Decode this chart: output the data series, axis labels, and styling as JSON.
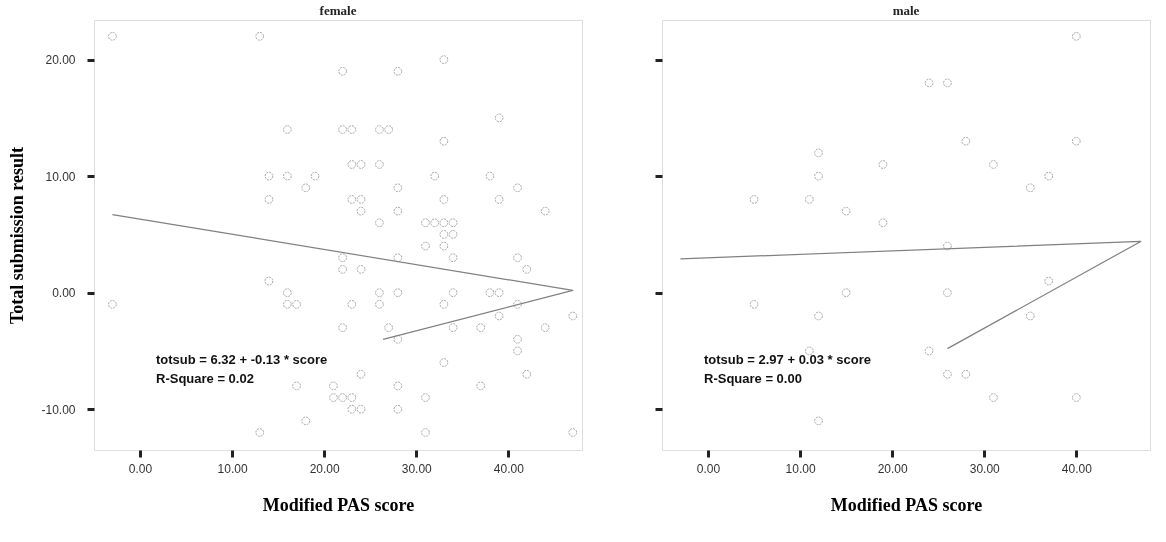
{
  "chart_data": [
    {
      "type": "scatter",
      "title": "female",
      "xlabel": "Modified PAS score",
      "ylabel": "Total submission result",
      "grid": false,
      "xlim": [
        -5,
        48
      ],
      "ylim": [
        -13.5,
        23.4
      ],
      "xticks": [
        {
          "value": 0,
          "label": "0.00"
        },
        {
          "value": 10,
          "label": "10.00"
        },
        {
          "value": 20,
          "label": "20.00"
        },
        {
          "value": 30,
          "label": "30.00"
        },
        {
          "value": 40,
          "label": "40.00"
        }
      ],
      "yticks": [
        {
          "value": -10,
          "label": "-10.00"
        },
        {
          "value": 0,
          "label": "0.00"
        },
        {
          "value": 10,
          "label": "10.00"
        },
        {
          "value": 20,
          "label": "20.00"
        }
      ],
      "annotations": [
        "totsub = 6.32 + -0.13 * score",
        "R-Square = 0.02"
      ],
      "series": [
        {
          "marker": "circle",
          "color": "#7f7f7f",
          "x": [
            -3,
            13,
            16,
            14,
            16,
            19,
            18,
            14,
            22,
            28,
            33,
            39,
            22,
            23,
            26,
            27,
            33,
            23,
            24,
            26,
            32,
            38,
            41,
            28,
            23,
            24,
            33,
            39,
            24,
            28,
            44,
            26,
            31,
            32,
            33,
            34,
            33,
            34,
            31,
            33,
            22,
            28,
            34,
            41,
            42,
            22,
            24,
            14,
            16,
            26,
            28,
            34,
            38,
            39,
            16,
            17,
            -3,
            23,
            26,
            33,
            41,
            39,
            47,
            22,
            27,
            34,
            37,
            44,
            28,
            41,
            41,
            33,
            24,
            42,
            17,
            21,
            28,
            37,
            21,
            22,
            23,
            31,
            23,
            24,
            28,
            18,
            13,
            31,
            47
          ],
          "values": [
            22,
            22,
            14,
            10,
            10,
            10,
            9,
            8,
            19,
            19,
            20,
            15,
            14,
            14,
            14,
            14,
            13,
            11,
            11,
            11,
            10,
            10,
            9,
            9,
            8,
            8,
            8,
            8,
            7,
            7,
            7,
            6,
            6,
            6,
            6,
            6,
            5,
            5,
            4,
            4,
            3,
            3,
            3,
            3,
            2,
            2,
            2,
            1,
            0,
            0,
            0,
            0,
            0,
            0,
            -1,
            -1,
            -1,
            -1,
            -1,
            -1,
            -1,
            -2,
            -2,
            -3,
            -3,
            -3,
            -3,
            -3,
            -4,
            -4,
            -5,
            -6,
            -7,
            -7,
            -8,
            -8,
            -8,
            -8,
            -9,
            -9,
            -9,
            -9,
            -10,
            -10,
            -10,
            -11,
            -12,
            -12,
            -12
          ]
        },
        {
          "type": "line",
          "color": "#808080",
          "x": [
            -3,
            47,
            26.4
          ],
          "values": [
            6.7,
            0.2,
            -4
          ]
        }
      ]
    },
    {
      "type": "scatter",
      "title": "male",
      "xlabel": "Modified PAS score",
      "grid": false,
      "tick_labels": "x",
      "xlim": [
        -5,
        48
      ],
      "ylim": [
        -13.5,
        23.4
      ],
      "xticks": [
        {
          "value": 0,
          "label": "0.00"
        },
        {
          "value": 10,
          "label": "10.00"
        },
        {
          "value": 20,
          "label": "20.00"
        },
        {
          "value": 30,
          "label": "30.00"
        },
        {
          "value": 40,
          "label": "40.00"
        }
      ],
      "yticks": [
        -10,
        0,
        10,
        20
      ],
      "annotations": [
        "totsub = 2.97 + 0.03 * score",
        "R-Square = 0.00"
      ],
      "series": [
        {
          "marker": "circle",
          "color": "#7f7f7f",
          "x": [
            40,
            24,
            26,
            28,
            40,
            12,
            19,
            31,
            12,
            37,
            35,
            5,
            11,
            15,
            19,
            26,
            37,
            5,
            15,
            26,
            12,
            35,
            11,
            24,
            26,
            28,
            31,
            40,
            12
          ],
          "values": [
            22,
            18,
            18,
            13,
            13,
            12,
            11,
            11,
            10,
            10,
            9,
            8,
            8,
            7,
            6,
            4,
            1,
            -1,
            0,
            0,
            -2,
            -2,
            -5,
            -5,
            -7,
            -7,
            -9,
            -9,
            -11
          ]
        },
        {
          "type": "line",
          "color": "#808080",
          "x": [
            -3,
            47,
            26
          ],
          "values": [
            2.9,
            4.4,
            -4.8
          ]
        }
      ]
    }
  ]
}
